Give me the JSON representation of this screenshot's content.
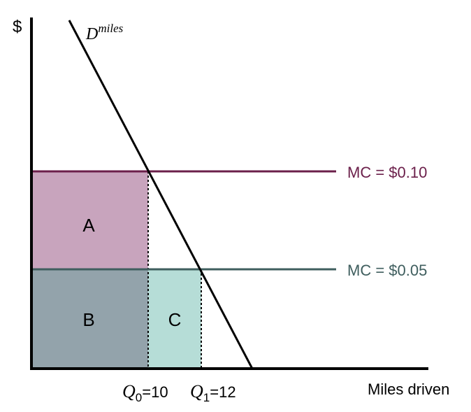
{
  "axes": {
    "y_label": "$",
    "x_label": "Miles driven"
  },
  "demand": {
    "label_main": "D",
    "label_sup": "miles"
  },
  "mc_high": {
    "label": "MC = $0.10",
    "color": "#6b1f4a"
  },
  "mc_low": {
    "label": "MC = $0.05",
    "color": "#3f5e5e"
  },
  "areas": {
    "a": {
      "label": "A",
      "color": "#c8a4bd"
    },
    "b": {
      "label": "B",
      "color": "#93a3ab"
    },
    "c": {
      "label": "C",
      "color": "#b6ddd7"
    }
  },
  "q0": {
    "symbol": "Q",
    "sub": "0",
    "value": "=10"
  },
  "q1": {
    "symbol": "Q",
    "sub": "1",
    "value": "=12"
  }
}
